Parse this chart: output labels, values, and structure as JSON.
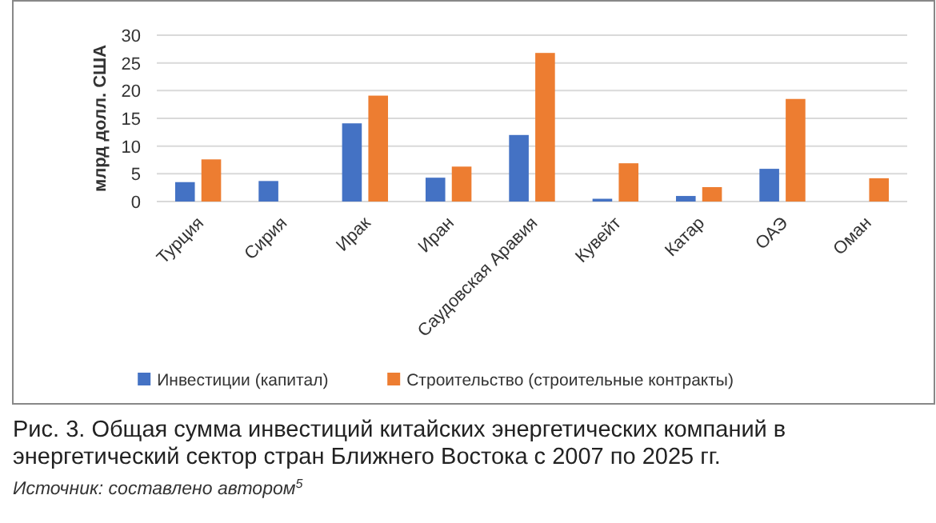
{
  "chart_data": {
    "type": "bar",
    "title": "Рис. 3. Общая сумма инвестиций китайских энергетических компаний в энергетический сектор стран Ближнего Востока с 2007 по 2025 гг.",
    "ylabel": "млрд долл. США",
    "annotations": [
      "Источник: составлено автором$^{5}$"
    ],
    "categories": [
      "Турция",
      "Сирия",
      "Ирак",
      "Иран",
      "Саудовская Аравия",
      "Кувейт",
      "Катар",
      "ОАЭ",
      "Оман"
    ],
    "series": [
      {
        "name": "Инвестиции (капитал)",
        "color": "#4472c4",
        "values": [
          3.5,
          3.7,
          14.1,
          4.3,
          12.0,
          0.5,
          1.0,
          5.9,
          null
        ]
      },
      {
        "name": "Строительство (строительные контракты)",
        "color": "#ed7d31",
        "values": [
          7.6,
          null,
          19.1,
          6.3,
          26.8,
          6.9,
          2.6,
          18.5,
          4.2
        ]
      }
    ],
    "ylim": [
      0,
      30
    ],
    "yticks": [
      0,
      5,
      10,
      15,
      20,
      25,
      30
    ],
    "grid": "y",
    "legend": "bottom"
  }
}
